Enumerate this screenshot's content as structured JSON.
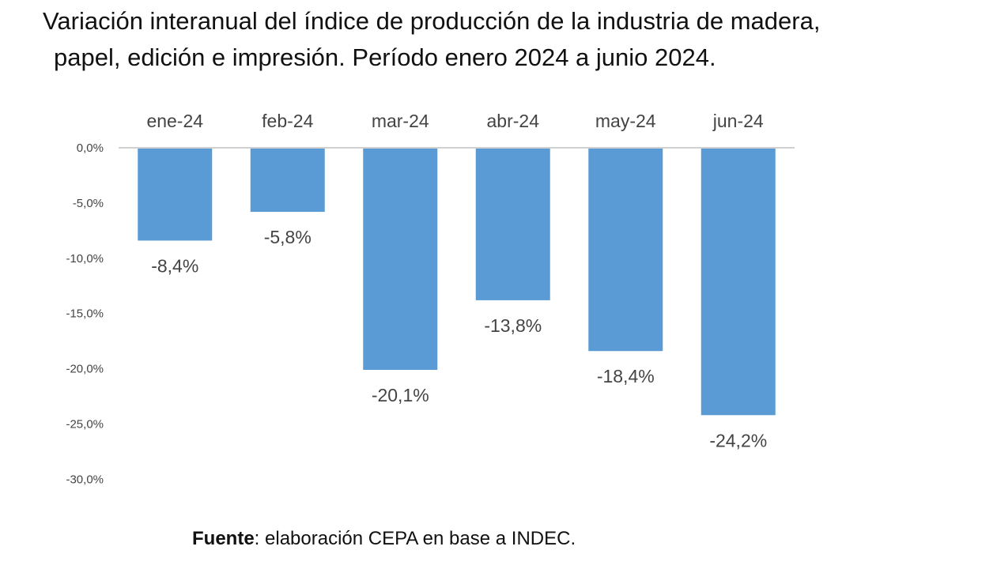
{
  "title_line1": "Variación interanual del índice de producción de la industria de madera,",
  "title_line2": "papel, edición e impresión. Período enero 2024 a junio 2024.",
  "source_label": "Fuente",
  "source_text": ": elaboración CEPA en base a INDEC.",
  "chart_data": {
    "type": "bar",
    "title": "Variación interanual del índice de producción de la industria de madera, papel, edición e impresión. Período enero 2024 a junio 2024.",
    "categories": [
      "ene-24",
      "feb-24",
      "mar-24",
      "abr-24",
      "may-24",
      "jun-24"
    ],
    "values": [
      -8.4,
      -5.8,
      -20.1,
      -13.8,
      -18.4,
      -24.2
    ],
    "value_labels": [
      "-8,4%",
      "-5,8%",
      "-20,1%",
      "-13,8%",
      "-18,4%",
      "-24,2%"
    ],
    "y_ticks": [
      0,
      -5,
      -10,
      -15,
      -20,
      -25,
      -30
    ],
    "y_tick_labels": [
      "0,0%",
      "-5,0%",
      "-10,0%",
      "-15,0%",
      "-20,0%",
      "-25,0%",
      "-30,0%"
    ],
    "ylim": [
      -30,
      0
    ],
    "xlabel": "",
    "ylabel": "",
    "bar_color": "#5b9bd5",
    "grid": false,
    "legend": "none"
  }
}
